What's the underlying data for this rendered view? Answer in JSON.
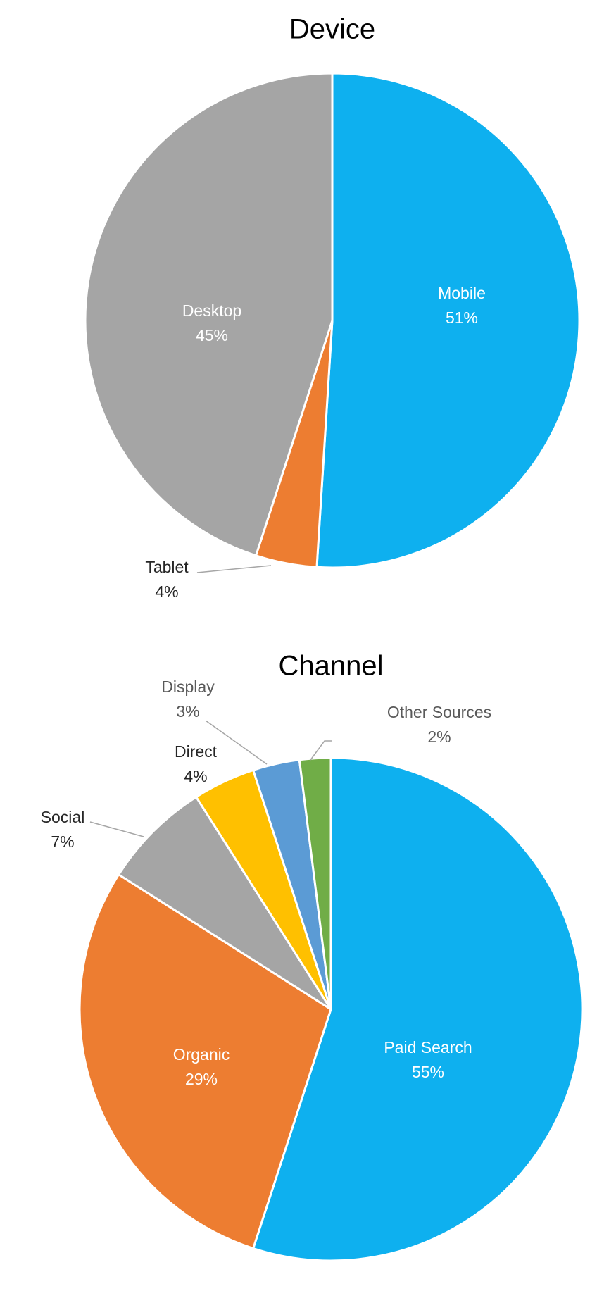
{
  "chart_data": [
    {
      "type": "pie",
      "title": "Device",
      "categories": [
        "Mobile",
        "Tablet",
        "Desktop"
      ],
      "values": [
        51,
        4,
        45
      ],
      "value_labels": [
        "51%",
        "4%",
        "45%"
      ],
      "colors": [
        "#0eb0ef",
        "#ed7d31",
        "#a5a5a5"
      ]
    },
    {
      "type": "pie",
      "title": "Channel",
      "categories": [
        "Paid Search",
        "Organic",
        "Social",
        "Direct",
        "Display",
        "Other Sources"
      ],
      "values": [
        55,
        29,
        7,
        4,
        3,
        2
      ],
      "value_labels": [
        "55%",
        "29%",
        "7%",
        "4%",
        "3%",
        "2%"
      ],
      "colors": [
        "#0eb0ef",
        "#ed7d31",
        "#a5a5a5",
        "#ffc000",
        "#5b9bd5",
        "#70ad47"
      ]
    }
  ]
}
